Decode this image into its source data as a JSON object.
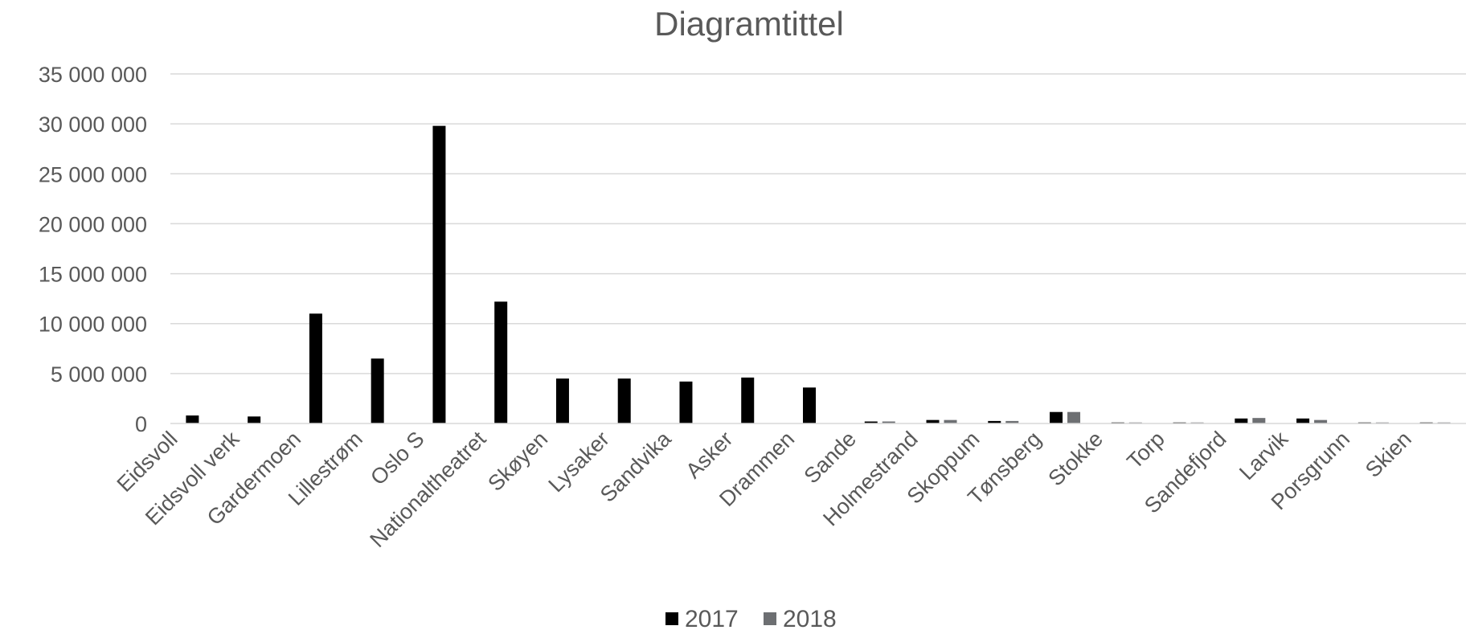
{
  "chart_data": {
    "type": "bar",
    "title": "Diagramtittel",
    "xlabel": "",
    "ylabel": "",
    "ylim": [
      0,
      35000000
    ],
    "yticks": [
      0,
      5000000,
      10000000,
      15000000,
      20000000,
      25000000,
      30000000,
      35000000
    ],
    "ytick_labels": [
      "0",
      "5 000 000",
      "10 000 000",
      "15 000 000",
      "20 000 000",
      "25 000 000",
      "30 000 000",
      "35 000 000"
    ],
    "grid": true,
    "legend_position": "bottom",
    "categories": [
      "Eidsvoll",
      "Eidsvoll verk",
      "Gardermoen",
      "Lillestrøm",
      "Oslo S",
      "Nationaltheatret",
      "Skøyen",
      "Lysaker",
      "Sandvika",
      "Asker",
      "Drammen",
      "Sande",
      "Holmestrand",
      "Skoppum",
      "Tønsberg",
      "Stokke",
      "Torp",
      "Sandefjord",
      "Larvik",
      "Porsgrunn",
      "Skien"
    ],
    "series": [
      {
        "name": "2017",
        "color": "#000000",
        "values": [
          800000,
          700000,
          11000000,
          6500000,
          29800000,
          12200000,
          4500000,
          4500000,
          4200000,
          4600000,
          3600000,
          200000,
          350000,
          250000,
          1150000,
          100000,
          100000,
          500000,
          500000,
          100000,
          100000
        ]
      },
      {
        "name": "2018",
        "color": "#6d6f72",
        "values": [
          null,
          null,
          null,
          null,
          null,
          null,
          null,
          null,
          null,
          null,
          null,
          200000,
          350000,
          250000,
          1150000,
          100000,
          100000,
          550000,
          350000,
          100000,
          100000
        ]
      }
    ]
  }
}
